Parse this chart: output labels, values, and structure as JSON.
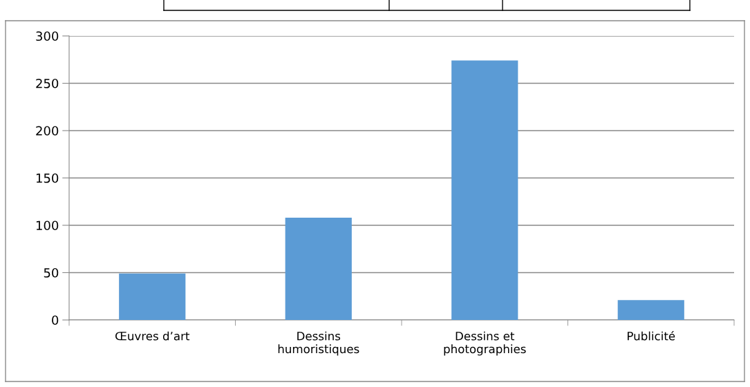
{
  "chart_data": {
    "type": "bar",
    "categories": [
      "Œuvres d’art",
      "Dessins\nhumoristiques",
      "Dessins et\nphotographies",
      "Publicité"
    ],
    "values": [
      49,
      108,
      274,
      21
    ],
    "color": "#5b9bd5",
    "ylim": [
      0,
      300
    ],
    "yticks": [
      0,
      50,
      100,
      150,
      200,
      250,
      300
    ],
    "grid": "y",
    "legend": false
  }
}
